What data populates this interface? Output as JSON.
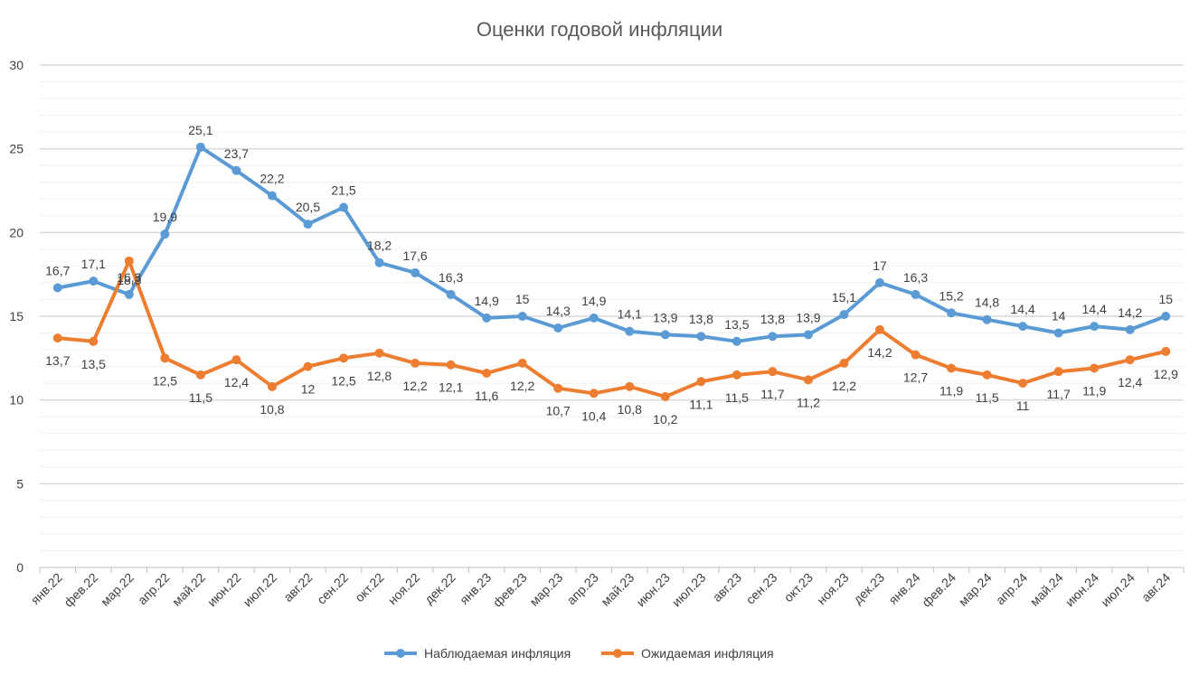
{
  "chart_data": {
    "type": "line",
    "title": "Оценки годовой инфляции",
    "xlabel": "",
    "ylabel": "",
    "ylim": [
      0,
      30
    ],
    "yticks": [
      0,
      5,
      10,
      15,
      20,
      25,
      30
    ],
    "grid": true,
    "legend": "bottom",
    "categories": [
      "янв.22",
      "фев.22",
      "мар.22",
      "апр.22",
      "май.22",
      "июн.22",
      "июл.22",
      "авг.22",
      "сен.22",
      "окт.22",
      "ноя.22",
      "дек.22",
      "янв.23",
      "фев.23",
      "мар.23",
      "апр.23",
      "май.23",
      "июн.23",
      "июл.23",
      "авг.23",
      "сен.23",
      "окт.23",
      "ноя.23",
      "дек.23",
      "янв.24",
      "фев.24",
      "мар.24",
      "апр.24",
      "май.24",
      "июн.24",
      "июл.24",
      "авг.24"
    ],
    "series": [
      {
        "name": "Наблюдаемая инфляция",
        "color": "#5B9BD5",
        "values": [
          16.7,
          17.1,
          16.3,
          19.9,
          25.1,
          23.7,
          22.2,
          20.5,
          21.5,
          18.2,
          17.6,
          16.3,
          14.9,
          15,
          14.3,
          14.9,
          14.1,
          13.9,
          13.8,
          13.5,
          13.8,
          13.9,
          15.1,
          17,
          16.3,
          15.2,
          14.8,
          14.4,
          14,
          14.4,
          14.2,
          15
        ],
        "labels": [
          "16,7",
          "17,1",
          "16,3",
          "19,9",
          "25,1",
          "23,7",
          "22,2",
          "20,5",
          "21,5",
          "18,2",
          "17,6",
          "16,3",
          "14,9",
          "15",
          "14,3",
          "14,9",
          "14,1",
          "13,9",
          "13,8",
          "13,5",
          "13,8",
          "13,9",
          "15,1",
          "17",
          "16,3",
          "15,2",
          "14,8",
          "14,4",
          "14",
          "14,4",
          "14,2",
          "15"
        ]
      },
      {
        "name": "Ожидаемая инфляция",
        "color": "#ED7D31",
        "values": [
          13.7,
          13.5,
          18.3,
          12.5,
          11.5,
          12.4,
          10.8,
          12,
          12.5,
          12.8,
          12.2,
          12.1,
          11.6,
          12.2,
          10.7,
          10.4,
          10.8,
          10.2,
          11.1,
          11.5,
          11.7,
          11.2,
          12.2,
          14.2,
          12.7,
          11.9,
          11.5,
          11,
          11.7,
          11.9,
          12.4,
          12.9
        ],
        "labels": [
          "13,7",
          "13,5",
          "18,3",
          "12,5",
          "11,5",
          "12,4",
          "10,8",
          "12",
          "12,5",
          "12,8",
          "12,2",
          "12,1",
          "11,6",
          "12,2",
          "10,7",
          "10,4",
          "10,8",
          "10,2",
          "11,1",
          "11,5",
          "11,7",
          "11,2",
          "12,2",
          "14,2",
          "12,7",
          "11,9",
          "11,5",
          "11",
          "11,7",
          "11,9",
          "12,4",
          "12,9"
        ]
      }
    ]
  }
}
